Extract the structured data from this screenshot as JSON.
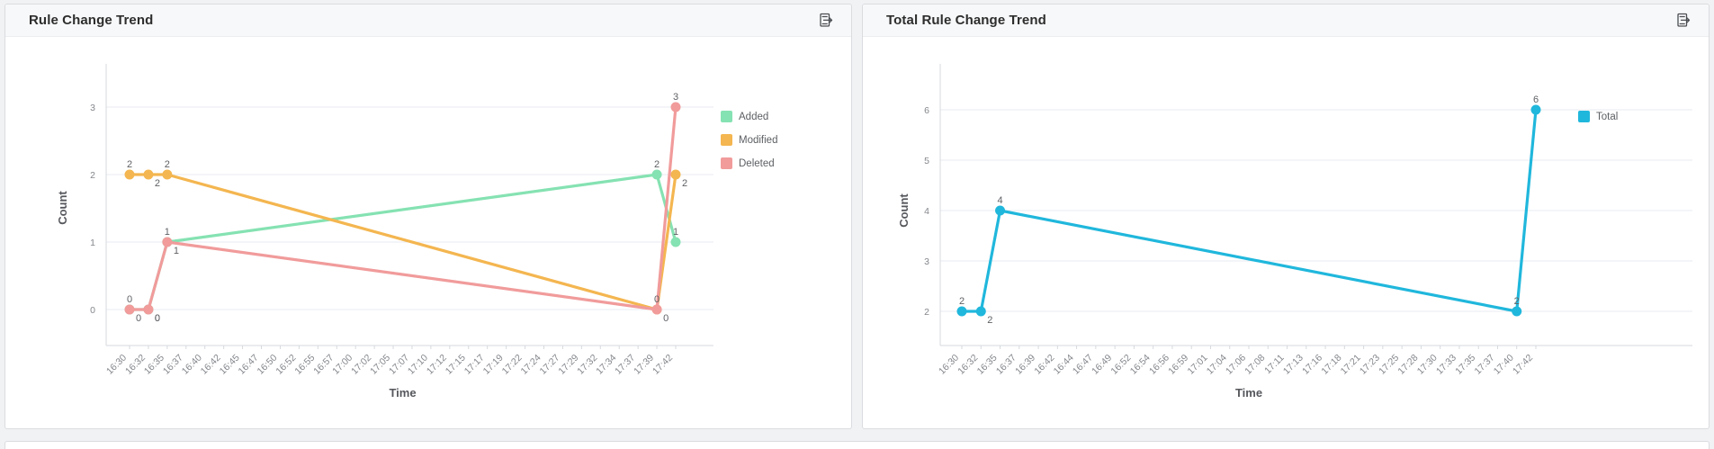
{
  "page": {
    "background": "#f1f2f4"
  },
  "panels": [
    {
      "title": "Rule Change Trend",
      "icon": "export-document-icon"
    },
    {
      "title": "Total Rule Change Trend",
      "icon": "export-document-icon"
    }
  ],
  "colors": {
    "added": "#85E2B2",
    "modified": "#F4B650",
    "deleted": "#F19B9B",
    "total": "#20B7DC",
    "grid": "#e9ebf0",
    "axis": "#d6d9de"
  },
  "chart_data": [
    {
      "type": "line",
      "title": "Rule Change Trend",
      "xlabel": "Time",
      "ylabel": "Count",
      "yticks": [
        0,
        1,
        2,
        3
      ],
      "grid": true,
      "legend_position": "right",
      "categories": [
        "16:30",
        "16:32",
        "16:35",
        "16:37",
        "16:40",
        "16:42",
        "16:45",
        "16:47",
        "16:50",
        "16:52",
        "16:55",
        "16:57",
        "17:00",
        "17:02",
        "17:05",
        "17:07",
        "17:10",
        "17:12",
        "17:15",
        "17:17",
        "17:19",
        "17:22",
        "17:24",
        "17:27",
        "17:29",
        "17:32",
        "17:34",
        "17:37",
        "17:39",
        "17:42"
      ],
      "series": [
        {
          "name": "Added",
          "color": "#85E2B2",
          "values": [
            0,
            0,
            1,
            null,
            null,
            null,
            null,
            null,
            null,
            null,
            null,
            null,
            null,
            null,
            null,
            null,
            null,
            null,
            null,
            null,
            null,
            null,
            null,
            null,
            null,
            null,
            null,
            null,
            2,
            1
          ]
        },
        {
          "name": "Modified",
          "color": "#F4B650",
          "values": [
            2,
            2,
            2,
            null,
            null,
            null,
            null,
            null,
            null,
            null,
            null,
            null,
            null,
            null,
            null,
            null,
            null,
            null,
            null,
            null,
            null,
            null,
            null,
            null,
            null,
            null,
            null,
            null,
            0,
            2
          ]
        },
        {
          "name": "Deleted",
          "color": "#F19B9B",
          "values": [
            0,
            0,
            1,
            null,
            null,
            null,
            null,
            null,
            null,
            null,
            null,
            null,
            null,
            null,
            null,
            null,
            null,
            null,
            null,
            null,
            null,
            null,
            null,
            null,
            null,
            null,
            null,
            null,
            0,
            3
          ]
        }
      ]
    },
    {
      "type": "line",
      "title": "Total Rule Change Trend",
      "xlabel": "Time",
      "ylabel": "Count",
      "yticks": [
        2,
        3,
        4,
        5,
        6
      ],
      "grid": true,
      "legend_position": "right",
      "categories": [
        "16:30",
        "16:32",
        "16:35",
        "16:37",
        "16:39",
        "16:42",
        "16:44",
        "16:47",
        "16:49",
        "16:52",
        "16:54",
        "16:56",
        "16:59",
        "17:01",
        "17:04",
        "17:06",
        "17:08",
        "17:11",
        "17:13",
        "17:16",
        "17:18",
        "17:21",
        "17:23",
        "17:25",
        "17:28",
        "17:30",
        "17:33",
        "17:35",
        "17:37",
        "17:40",
        "17:42"
      ],
      "series": [
        {
          "name": "Total",
          "color": "#20B7DC",
          "values": [
            2,
            2,
            4,
            null,
            null,
            null,
            null,
            null,
            null,
            null,
            null,
            null,
            null,
            null,
            null,
            null,
            null,
            null,
            null,
            null,
            null,
            null,
            null,
            null,
            null,
            null,
            null,
            null,
            null,
            2,
            6
          ]
        }
      ]
    }
  ]
}
